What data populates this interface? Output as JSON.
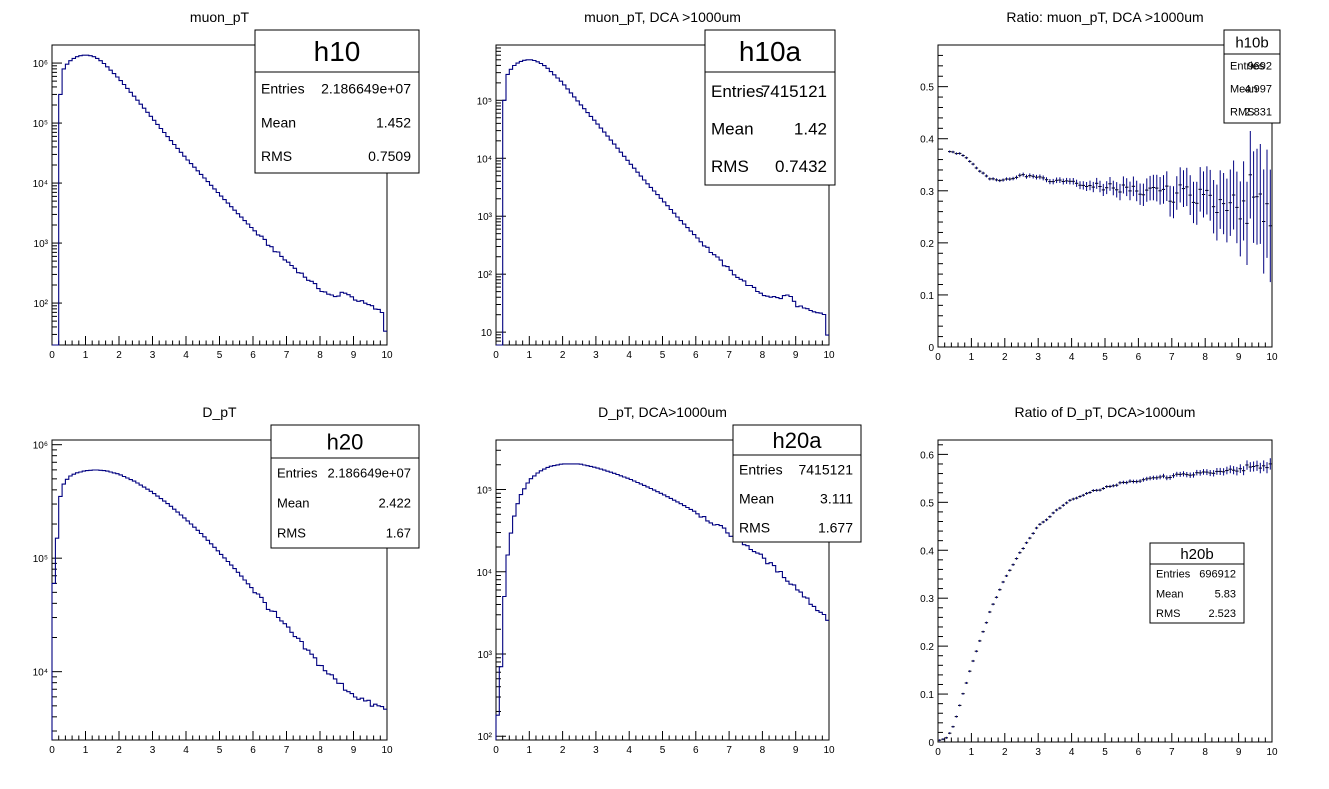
{
  "colors": {
    "line": "#000080",
    "frame": "#000000",
    "background": "#ffffff"
  },
  "chart_data": [
    {
      "id": "c1",
      "type": "histogram",
      "title": "muon_pT",
      "xlim": [
        0,
        10
      ],
      "ylog": true,
      "ylim": [
        20,
        2000000
      ],
      "xticks": [
        "0",
        "1",
        "2",
        "3",
        "4",
        "5",
        "6",
        "7",
        "8",
        "9",
        "10"
      ],
      "yticks": [
        {
          "v": 100,
          "label": "10²"
        },
        {
          "v": 1000,
          "label": "10³"
        },
        {
          "v": 10000,
          "label": "10⁴"
        },
        {
          "v": 100000,
          "label": "10⁵"
        },
        {
          "v": 1000000,
          "label": "10⁶"
        }
      ],
      "anchors": [
        [
          0.05,
          20
        ],
        [
          0.15,
          20
        ],
        [
          0.25,
          300000.0
        ],
        [
          0.35,
          800000.0
        ],
        [
          0.5,
          1050000.0
        ],
        [
          0.7,
          1250000.0
        ],
        [
          0.9,
          1350000.0
        ],
        [
          1.1,
          1350000.0
        ],
        [
          1.3,
          1250000.0
        ],
        [
          1.5,
          1050000.0
        ],
        [
          2,
          550000.0
        ],
        [
          2.5,
          260000.0
        ],
        [
          3,
          120000.0
        ],
        [
          3.5,
          55000.0
        ],
        [
          4,
          26000.0
        ],
        [
          4.5,
          13000.0
        ],
        [
          5,
          6500
        ],
        [
          5.5,
          3300
        ],
        [
          6,
          1700
        ],
        [
          6.5,
          900
        ],
        [
          7,
          500
        ],
        [
          7.5,
          290
        ],
        [
          8,
          170
        ],
        [
          8.5,
          120
        ],
        [
          8.7,
          160
        ],
        [
          9,
          120
        ],
        [
          9.5,
          90
        ],
        [
          9.85,
          70
        ],
        [
          9.95,
          35
        ]
      ],
      "stats": {
        "name": "h10",
        "rows": [
          {
            "label": "Entries",
            "value": "2.186649e+07"
          },
          {
            "label": "Mean",
            "value": "1.452"
          },
          {
            "label": "RMS",
            "value": "0.7509"
          }
        ]
      }
    },
    {
      "id": "c2",
      "type": "histogram",
      "title": "muon_pT, DCA >1000um",
      "xlim": [
        0,
        10
      ],
      "ylog": true,
      "ylim": [
        6,
        900000
      ],
      "xticks": [
        "0",
        "1",
        "2",
        "3",
        "4",
        "5",
        "6",
        "7",
        "8",
        "9",
        "10"
      ],
      "yticks": [
        {
          "v": 10,
          "label": "10"
        },
        {
          "v": 100,
          "label": "10²"
        },
        {
          "v": 1000,
          "label": "10³"
        },
        {
          "v": 10000,
          "label": "10⁴"
        },
        {
          "v": 100000,
          "label": "10⁵"
        }
      ],
      "anchors": [
        [
          0.05,
          6
        ],
        [
          0.15,
          6
        ],
        [
          0.25,
          100000.0
        ],
        [
          0.35,
          280000.0
        ],
        [
          0.5,
          380000.0
        ],
        [
          0.7,
          460000.0
        ],
        [
          0.9,
          500000.0
        ],
        [
          1.1,
          500000.0
        ],
        [
          1.3,
          450000.0
        ],
        [
          1.5,
          380000.0
        ],
        [
          2,
          200000.0
        ],
        [
          2.5,
          90000.0
        ],
        [
          3,
          42000.0
        ],
        [
          3.5,
          19000.0
        ],
        [
          4,
          8500
        ],
        [
          4.5,
          3900
        ],
        [
          5,
          1900
        ],
        [
          5.5,
          900
        ],
        [
          6,
          450
        ],
        [
          6.5,
          230
        ],
        [
          7,
          120
        ],
        [
          7.5,
          70
        ],
        [
          8,
          45
        ],
        [
          8.5,
          38
        ],
        [
          8.8,
          45
        ],
        [
          9,
          30
        ],
        [
          9.5,
          22
        ],
        [
          9.85,
          20
        ],
        [
          9.95,
          9
        ]
      ],
      "stats": {
        "name": "h10a",
        "rows": [
          {
            "label": "Entries",
            "value": "7415121"
          },
          {
            "label": "Mean",
            "value": "1.42"
          },
          {
            "label": "RMS",
            "value": "0.7432"
          }
        ]
      }
    },
    {
      "id": "c3",
      "type": "ratio_errorbars",
      "title": "Ratio: muon_pT, DCA >1000um",
      "xlim": [
        0,
        10
      ],
      "ylog": false,
      "ylim": [
        0,
        0.58
      ],
      "xticks": [
        "0",
        "1",
        "2",
        "3",
        "4",
        "5",
        "6",
        "7",
        "8",
        "9",
        "10"
      ],
      "yticks": [
        {
          "v": 0,
          "label": "0"
        },
        {
          "v": 0.1,
          "label": "0.1"
        },
        {
          "v": 0.2,
          "label": "0.2"
        },
        {
          "v": 0.3,
          "label": "0.3"
        },
        {
          "v": 0.4,
          "label": "0.4"
        },
        {
          "v": 0.5,
          "label": "0.5"
        }
      ],
      "anchors": [
        [
          0.35,
          0.375
        ],
        [
          0.7,
          0.37
        ],
        [
          1,
          0.355
        ],
        [
          1.3,
          0.335
        ],
        [
          1.6,
          0.322
        ],
        [
          1.9,
          0.32
        ],
        [
          2.2,
          0.322
        ],
        [
          2.5,
          0.33
        ],
        [
          2.8,
          0.328
        ],
        [
          3.2,
          0.322
        ],
        [
          3.6,
          0.318
        ],
        [
          4,
          0.315
        ],
        [
          4.5,
          0.31
        ],
        [
          5,
          0.307
        ],
        [
          5.5,
          0.303
        ],
        [
          6,
          0.3
        ],
        [
          6.5,
          0.296
        ],
        [
          7,
          0.295
        ],
        [
          7.5,
          0.292
        ],
        [
          8,
          0.288
        ],
        [
          8.5,
          0.285
        ],
        [
          9,
          0.283
        ],
        [
          9.5,
          0.28
        ],
        [
          9.9,
          0.27
        ]
      ],
      "errors": [
        [
          0,
          0.002
        ],
        [
          2,
          0.003
        ],
        [
          4,
          0.006
        ],
        [
          5,
          0.012
        ],
        [
          6,
          0.02
        ],
        [
          7,
          0.03
        ],
        [
          8,
          0.045
        ],
        [
          9,
          0.07
        ],
        [
          10,
          0.11
        ]
      ],
      "stats": {
        "name": "h10b",
        "rows": [
          {
            "label": "Entries",
            "value": "9692"
          },
          {
            "label": "Mean",
            "value": "4.997"
          },
          {
            "label": "RMS",
            "value": "2.831"
          }
        ]
      }
    },
    {
      "id": "c4",
      "type": "histogram",
      "title": "D_pT",
      "xlim": [
        0,
        10
      ],
      "ylog": true,
      "ylim": [
        2500,
        1100000
      ],
      "xticks": [
        "0",
        "1",
        "2",
        "3",
        "4",
        "5",
        "6",
        "7",
        "8",
        "9",
        "10"
      ],
      "yticks": [
        {
          "v": 10000,
          "label": "10⁴"
        },
        {
          "v": 100000,
          "label": "10⁵"
        },
        {
          "v": 1000000,
          "label": "10⁶"
        }
      ],
      "anchors": [
        [
          0.05,
          60000
        ],
        [
          0.15,
          150000
        ],
        [
          0.25,
          350000
        ],
        [
          0.35,
          450000
        ],
        [
          0.5,
          520000
        ],
        [
          0.7,
          560000
        ],
        [
          1,
          590000
        ],
        [
          1.3,
          600000
        ],
        [
          1.6,
          590000
        ],
        [
          2,
          550000
        ],
        [
          2.5,
          470000
        ],
        [
          3,
          380000
        ],
        [
          3.5,
          295000
        ],
        [
          4,
          220000
        ],
        [
          4.5,
          160000
        ],
        [
          5,
          112000
        ],
        [
          5.5,
          78000
        ],
        [
          6,
          53000
        ],
        [
          6.5,
          36000
        ],
        [
          7,
          24500
        ],
        [
          7.5,
          16800
        ],
        [
          8,
          11500
        ],
        [
          8.5,
          8200
        ],
        [
          9,
          6300
        ],
        [
          9.5,
          5200
        ],
        [
          9.95,
          4700
        ]
      ],
      "stats": {
        "name": "h20",
        "rows": [
          {
            "label": "Entries",
            "value": "2.186649e+07"
          },
          {
            "label": "Mean",
            "value": "2.422"
          },
          {
            "label": "RMS",
            "value": "1.67"
          }
        ]
      }
    },
    {
      "id": "c5",
      "type": "histogram",
      "title": "D_pT, DCA>1000um",
      "xlim": [
        0,
        10
      ],
      "ylog": true,
      "ylim": [
        90,
        400000
      ],
      "xticks": [
        "0",
        "1",
        "2",
        "3",
        "4",
        "5",
        "6",
        "7",
        "8",
        "9",
        "10"
      ],
      "yticks": [
        {
          "v": 100,
          "label": "10²"
        },
        {
          "v": 1000,
          "label": "10³"
        },
        {
          "v": 10000,
          "label": "10⁴"
        },
        {
          "v": 100000,
          "label": "10⁵"
        }
      ],
      "anchors": [
        [
          0.05,
          180
        ],
        [
          0.15,
          700
        ],
        [
          0.25,
          5000
        ],
        [
          0.35,
          16000
        ],
        [
          0.5,
          40000
        ],
        [
          0.7,
          80000
        ],
        [
          1,
          130000
        ],
        [
          1.3,
          165000
        ],
        [
          1.6,
          190000
        ],
        [
          2,
          205000
        ],
        [
          2.5,
          205000
        ],
        [
          3,
          185000
        ],
        [
          3.5,
          160000
        ],
        [
          4,
          135000
        ],
        [
          4.5,
          110000
        ],
        [
          5,
          88000
        ],
        [
          5.5,
          69000
        ],
        [
          6,
          53000
        ],
        [
          6.5,
          40000
        ],
        [
          7,
          29500
        ],
        [
          7.5,
          21500
        ],
        [
          8,
          15000
        ],
        [
          8.5,
          10000
        ],
        [
          9,
          6500
        ],
        [
          9.5,
          4000
        ],
        [
          9.95,
          2700
        ]
      ],
      "stats": {
        "name": "h20a",
        "rows": [
          {
            "label": "Entries",
            "value": "7415121"
          },
          {
            "label": "Mean",
            "value": "3.111"
          },
          {
            "label": "RMS",
            "value": "1.677"
          }
        ]
      }
    },
    {
      "id": "c6",
      "type": "ratio_errorbars",
      "title": "Ratio of D_pT, DCA>1000um",
      "xlim": [
        0,
        10
      ],
      "ylog": false,
      "ylim": [
        0,
        0.63
      ],
      "xticks": [
        "0",
        "1",
        "2",
        "3",
        "4",
        "5",
        "6",
        "7",
        "8",
        "9",
        "10"
      ],
      "yticks": [
        {
          "v": 0,
          "label": "0"
        },
        {
          "v": 0.1,
          "label": "0.1"
        },
        {
          "v": 0.2,
          "label": "0.2"
        },
        {
          "v": 0.3,
          "label": "0.3"
        },
        {
          "v": 0.4,
          "label": "0.4"
        },
        {
          "v": 0.5,
          "label": "0.5"
        },
        {
          "v": 0.6,
          "label": "0.6"
        }
      ],
      "anchors": [
        [
          0.05,
          0.003
        ],
        [
          0.3,
          0.01
        ],
        [
          0.5,
          0.04
        ],
        [
          0.75,
          0.1
        ],
        [
          1,
          0.16
        ],
        [
          1.3,
          0.22
        ],
        [
          1.6,
          0.28
        ],
        [
          2,
          0.34
        ],
        [
          2.5,
          0.4
        ],
        [
          3,
          0.45
        ],
        [
          3.5,
          0.48
        ],
        [
          4,
          0.505
        ],
        [
          4.5,
          0.52
        ],
        [
          5,
          0.53
        ],
        [
          5.5,
          0.54
        ],
        [
          6,
          0.545
        ],
        [
          6.5,
          0.55
        ],
        [
          7,
          0.555
        ],
        [
          7.5,
          0.558
        ],
        [
          8,
          0.562
        ],
        [
          8.5,
          0.566
        ],
        [
          9,
          0.57
        ],
        [
          9.5,
          0.574
        ],
        [
          9.95,
          0.577
        ]
      ],
      "errors": [
        [
          0,
          0.002
        ],
        [
          5,
          0.003
        ],
        [
          8,
          0.006
        ],
        [
          10,
          0.012
        ]
      ],
      "stats": {
        "name": "h20b",
        "rows": [
          {
            "label": "Entries",
            "value": "696912"
          },
          {
            "label": "Mean",
            "value": "5.83"
          },
          {
            "label": "RMS",
            "value": "2.523"
          }
        ]
      }
    }
  ]
}
